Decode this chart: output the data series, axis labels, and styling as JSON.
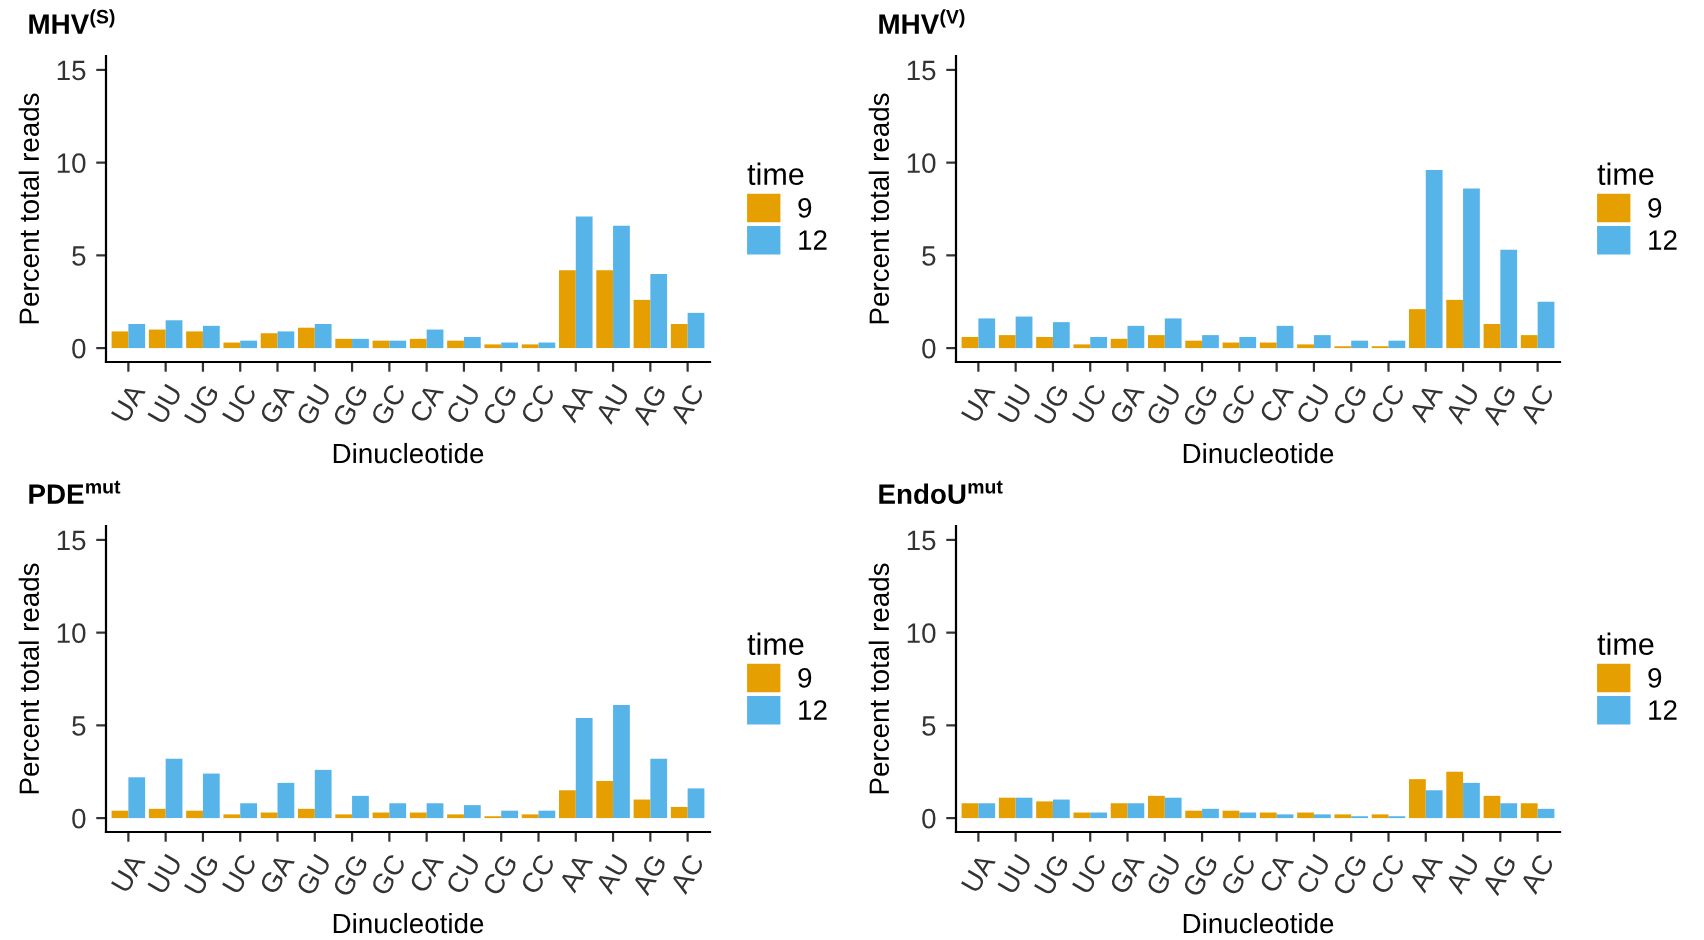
{
  "chart_data": [
    {
      "type": "bar",
      "title": "MHV$^{(S)}$",
      "xlabel": "Dinucleotide",
      "ylabel": "Percent total reads",
      "legend_title": "time",
      "legend": "right",
      "ylim": [
        -0.75,
        15.75
      ],
      "yticks": [
        0,
        5,
        10,
        15
      ],
      "categories": [
        "UA",
        "UU",
        "UG",
        "UC",
        "GA",
        "GU",
        "GG",
        "GC",
        "CA",
        "CU",
        "CG",
        "CC",
        "AA",
        "AU",
        "AG",
        "AC"
      ],
      "series": [
        {
          "name": "9",
          "color": "#e69f00",
          "values": [
            0.9,
            1.0,
            0.9,
            0.3,
            0.8,
            1.1,
            0.5,
            0.4,
            0.5,
            0.4,
            0.2,
            0.2,
            4.2,
            4.2,
            2.6,
            1.3
          ]
        },
        {
          "name": "12",
          "color": "#56b4e9",
          "values": [
            1.3,
            1.5,
            1.2,
            0.4,
            0.9,
            1.3,
            0.5,
            0.4,
            1.0,
            0.6,
            0.3,
            0.3,
            7.1,
            6.6,
            4.0,
            1.9
          ]
        }
      ]
    },
    {
      "type": "bar",
      "title": "MHV$^{(V)}$",
      "xlabel": "Dinucleotide",
      "ylabel": "Percent total reads",
      "legend_title": "time",
      "legend": "right",
      "ylim": [
        -0.75,
        15.75
      ],
      "yticks": [
        0,
        5,
        10,
        15
      ],
      "categories": [
        "UA",
        "UU",
        "UG",
        "UC",
        "GA",
        "GU",
        "GG",
        "GC",
        "CA",
        "CU",
        "CG",
        "CC",
        "AA",
        "AU",
        "AG",
        "AC"
      ],
      "series": [
        {
          "name": "9",
          "color": "#e69f00",
          "values": [
            0.6,
            0.7,
            0.6,
            0.2,
            0.5,
            0.7,
            0.4,
            0.3,
            0.3,
            0.2,
            0.1,
            0.1,
            2.1,
            2.6,
            1.3,
            0.7
          ]
        },
        {
          "name": "12",
          "color": "#56b4e9",
          "values": [
            1.6,
            1.7,
            1.4,
            0.6,
            1.2,
            1.6,
            0.7,
            0.6,
            1.2,
            0.7,
            0.4,
            0.4,
            9.6,
            8.6,
            5.3,
            2.5
          ]
        }
      ]
    },
    {
      "type": "bar",
      "title": "PDE$^{mut}$",
      "xlabel": "Dinucleotide",
      "ylabel": "Percent total reads",
      "legend_title": "time",
      "legend": "right",
      "ylim": [
        -0.75,
        15.75
      ],
      "yticks": [
        0,
        5,
        10,
        15
      ],
      "categories": [
        "UA",
        "UU",
        "UG",
        "UC",
        "GA",
        "GU",
        "GG",
        "GC",
        "CA",
        "CU",
        "CG",
        "CC",
        "AA",
        "AU",
        "AG",
        "AC"
      ],
      "series": [
        {
          "name": "9",
          "color": "#e69f00",
          "values": [
            0.4,
            0.5,
            0.4,
            0.2,
            0.3,
            0.5,
            0.2,
            0.3,
            0.3,
            0.2,
            0.1,
            0.2,
            1.5,
            2.0,
            1.0,
            0.6
          ]
        },
        {
          "name": "12",
          "color": "#56b4e9",
          "values": [
            2.2,
            3.2,
            2.4,
            0.8,
            1.9,
            2.6,
            1.2,
            0.8,
            0.8,
            0.7,
            0.4,
            0.4,
            5.4,
            6.1,
            3.2,
            1.6
          ]
        }
      ]
    },
    {
      "type": "bar",
      "title": "EndoU$^{mut}$",
      "xlabel": "Dinucleotide",
      "ylabel": "Percent total reads",
      "legend_title": "time",
      "legend": "right",
      "ylim": [
        -0.75,
        15.75
      ],
      "yticks": [
        0,
        5,
        10,
        15
      ],
      "categories": [
        "UA",
        "UU",
        "UG",
        "UC",
        "GA",
        "GU",
        "GG",
        "GC",
        "CA",
        "CU",
        "CG",
        "CC",
        "AA",
        "AU",
        "AG",
        "AC"
      ],
      "series": [
        {
          "name": "9",
          "color": "#e69f00",
          "values": [
            0.8,
            1.1,
            0.9,
            0.3,
            0.8,
            1.2,
            0.4,
            0.4,
            0.3,
            0.3,
            0.2,
            0.2,
            2.1,
            2.5,
            1.2,
            0.8
          ]
        },
        {
          "name": "12",
          "color": "#56b4e9",
          "values": [
            0.8,
            1.1,
            1.0,
            0.3,
            0.8,
            1.1,
            0.5,
            0.3,
            0.2,
            0.2,
            0.1,
            0.1,
            1.5,
            1.9,
            0.8,
            0.5
          ]
        }
      ]
    }
  ]
}
